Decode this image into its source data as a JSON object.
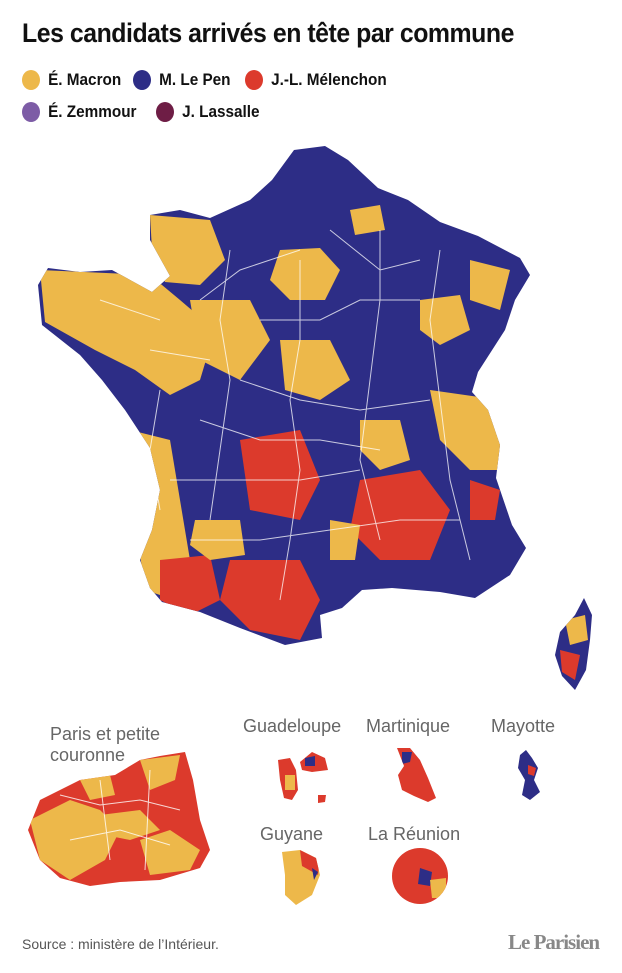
{
  "title": "Les candidats arrivés en tête par commune",
  "legend": [
    {
      "label": "É. Macron",
      "color": "#edb84a"
    },
    {
      "label": "M. Le Pen",
      "color": "#2d2d86"
    },
    {
      "label": "J.-L. Mélenchon",
      "color": "#dc3a2c"
    },
    {
      "label": "É. Zemmour",
      "color": "#7d5ca6"
    },
    {
      "label": "J. Lassalle",
      "color": "#6e1d45"
    }
  ],
  "insets": {
    "paris": "Paris et petite\ncouronne",
    "guadeloupe": "Guadeloupe",
    "martinique": "Martinique",
    "mayotte": "Mayotte",
    "guyane": "Guyane",
    "reunion": "La Réunion"
  },
  "source": "Source : ministère de l’Intérieur.",
  "logo": "Le Parisien"
}
